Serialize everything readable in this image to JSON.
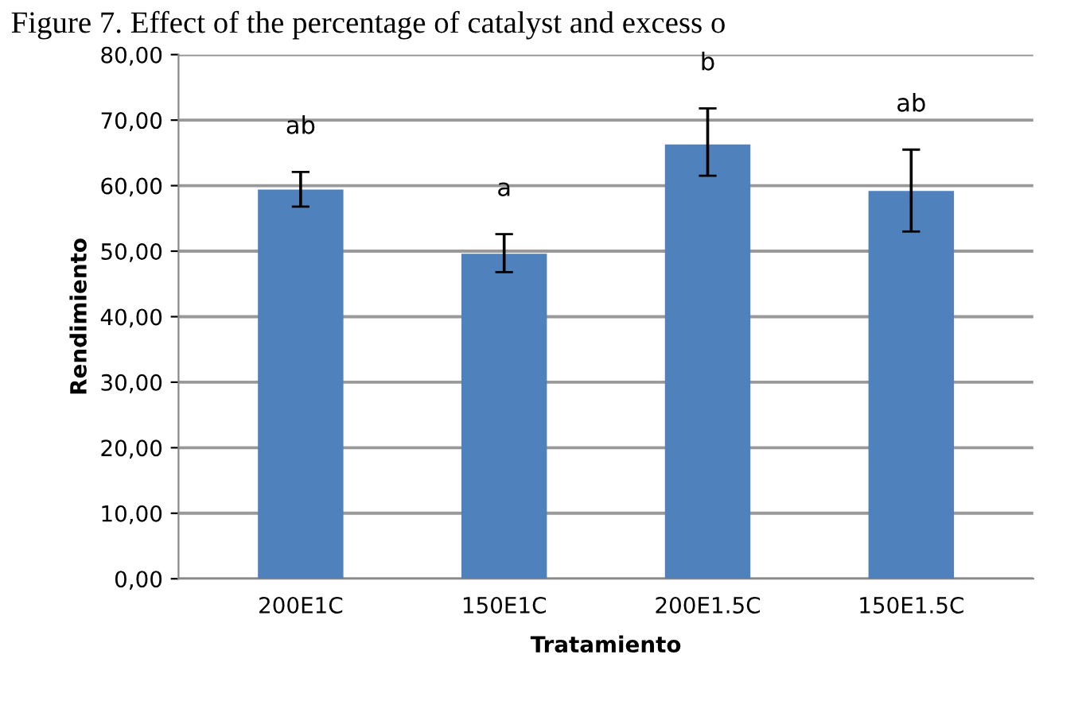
{
  "chart_data": {
    "type": "bar",
    "title": "Figure 7. Effect of the percentage of catalyst and excess o",
    "xlabel": "Tratamiento",
    "ylabel": "Rendimiento",
    "categories": [
      "200E1C",
      "150E1C",
      "200E1.5C",
      "150E1.5C"
    ],
    "values": [
      59.4,
      49.6,
      66.3,
      59.2
    ],
    "errors": [
      [
        56.8,
        62.1
      ],
      [
        46.8,
        52.6
      ],
      [
        61.5,
        71.8
      ],
      [
        53.0,
        65.5
      ]
    ],
    "color": "#4f81bd",
    "ylim": [
      0,
      80
    ],
    "yticks": [
      {
        "value": 0,
        "label": "0,00"
      },
      {
        "value": 10,
        "label": "10,00"
      },
      {
        "value": 20,
        "label": "20,00"
      },
      {
        "value": 30,
        "label": "30,00"
      },
      {
        "value": 40,
        "label": "40,00"
      },
      {
        "value": 50,
        "label": "50,00"
      },
      {
        "value": 60,
        "label": "60,00"
      },
      {
        "value": 70,
        "label": "70,00"
      },
      {
        "value": 80,
        "label": "80,00"
      }
    ],
    "grid": "y",
    "annotations": [
      "ab",
      "a",
      "b",
      "ab"
    ]
  }
}
